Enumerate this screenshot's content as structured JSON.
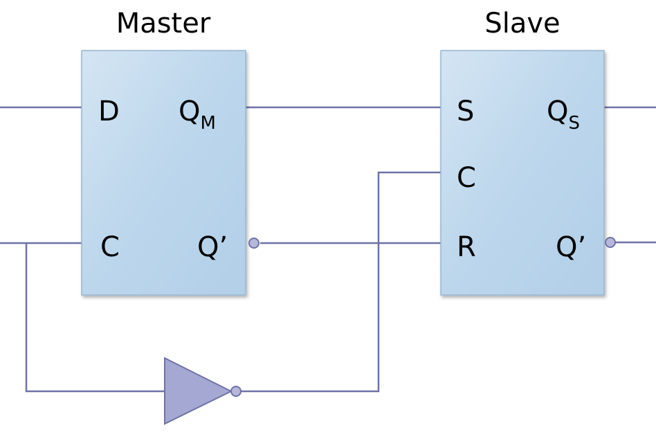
{
  "master": {
    "title": "Master",
    "pins": {
      "d": "D",
      "q_main": "Q",
      "q_sub": "M",
      "c": "C",
      "q_bar": "Q’"
    }
  },
  "slave": {
    "title": "Slave",
    "pins": {
      "s": "S",
      "q_main": "Q",
      "q_sub": "S",
      "c": "C",
      "r": "R",
      "q_bar": "Q’"
    }
  },
  "colors": {
    "wire": "#6e72a6",
    "box_light": "#d4e5f3",
    "box_dark": "#b6d2ea",
    "inverter": "#a5a8d2"
  }
}
